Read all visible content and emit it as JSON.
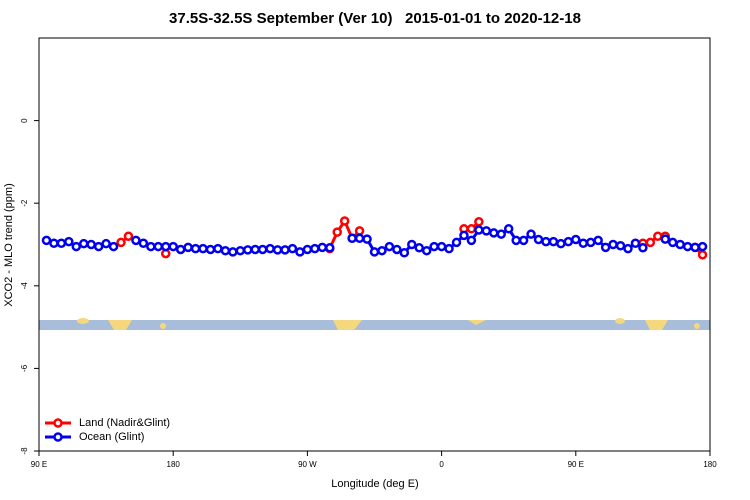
{
  "chart_data": {
    "type": "line",
    "title": "37.5S-32.5S September (Ver 10)   2015-01-01 to 2020-12-18",
    "x_label": "Longitude (deg E)",
    "y_label": "XCO2 - MLO trend (ppm)",
    "xlim": [
      90,
      540
    ],
    "ylim": [
      -8,
      2
    ],
    "xticks": [
      {
        "value": 90,
        "label": "90 E"
      },
      180,
      {
        "value": 270,
        "label": "90 W"
      },
      {
        "value": 360,
        "label": "0"
      },
      {
        "value": 450,
        "label": "90 E"
      },
      {
        "value": 540,
        "label": "180"
      }
    ],
    "yticks": [
      -8,
      -6,
      -4,
      -2,
      0
    ],
    "legend": "bottom-left",
    "x": [
      95,
      100,
      105,
      110,
      115,
      120,
      125,
      130,
      135,
      140,
      145,
      150,
      155,
      160,
      165,
      170,
      175,
      180,
      185,
      190,
      195,
      200,
      205,
      210,
      215,
      220,
      225,
      230,
      235,
      240,
      245,
      250,
      255,
      260,
      265,
      270,
      275,
      280,
      285,
      290,
      295,
      300,
      305,
      310,
      315,
      320,
      325,
      330,
      335,
      340,
      345,
      350,
      355,
      360,
      365,
      370,
      375,
      380,
      385,
      390,
      395,
      400,
      405,
      410,
      415,
      420,
      425,
      430,
      435,
      440,
      445,
      450,
      455,
      460,
      465,
      470,
      475,
      480,
      485,
      490,
      495,
      500,
      505,
      510,
      515,
      520,
      525,
      530,
      535
    ],
    "series": [
      {
        "name": "Land (Nadir&Glint)",
        "color": "#ff0000",
        "values": [
          null,
          null,
          null,
          null,
          null,
          null,
          null,
          null,
          null,
          null,
          -2.95,
          -2.8,
          null,
          null,
          null,
          null,
          -3.22,
          null,
          null,
          null,
          null,
          null,
          null,
          null,
          null,
          null,
          null,
          null,
          null,
          null,
          null,
          null,
          null,
          null,
          null,
          null,
          null,
          null,
          -3.1,
          -2.7,
          -2.43,
          -2.85,
          -2.67,
          null,
          null,
          null,
          null,
          null,
          null,
          null,
          null,
          null,
          null,
          null,
          null,
          null,
          -2.62,
          -2.62,
          -2.45,
          null,
          null,
          null,
          null,
          null,
          null,
          null,
          null,
          null,
          null,
          null,
          null,
          null,
          null,
          null,
          null,
          null,
          null,
          null,
          null,
          null,
          -2.97,
          -2.95,
          -2.8,
          -2.8,
          null,
          null,
          null,
          -3.07,
          -3.25
        ]
      },
      {
        "name": "Ocean (Glint)",
        "color": "#0000ee",
        "values": [
          -2.9,
          -2.97,
          -2.97,
          -2.93,
          -3.05,
          -2.98,
          -3.0,
          -3.05,
          -2.98,
          -3.05,
          null,
          null,
          -2.9,
          -2.97,
          -3.05,
          -3.05,
          -3.05,
          -3.05,
          -3.12,
          -3.07,
          -3.1,
          -3.1,
          -3.12,
          -3.1,
          -3.15,
          -3.18,
          -3.15,
          -3.13,
          -3.12,
          -3.12,
          -3.1,
          -3.13,
          -3.13,
          -3.1,
          -3.18,
          -3.12,
          -3.1,
          -3.07,
          -3.08,
          null,
          null,
          -2.85,
          -2.85,
          -2.87,
          -3.18,
          -3.15,
          -3.05,
          -3.12,
          -3.2,
          -3.0,
          -3.08,
          -3.15,
          -3.05,
          -3.05,
          -3.1,
          -2.95,
          -2.78,
          -2.9,
          -2.65,
          -2.67,
          -2.72,
          -2.75,
          -2.62,
          -2.9,
          -2.9,
          -2.75,
          -2.88,
          -2.93,
          -2.93,
          -2.98,
          -2.93,
          -2.88,
          -2.97,
          -2.95,
          -2.9,
          -3.07,
          -3.0,
          -3.03,
          -3.1,
          -2.97,
          -3.08,
          null,
          null,
          -2.87,
          -2.95,
          -3.0,
          -3.05,
          -3.07,
          -3.05
        ]
      }
    ]
  }
}
